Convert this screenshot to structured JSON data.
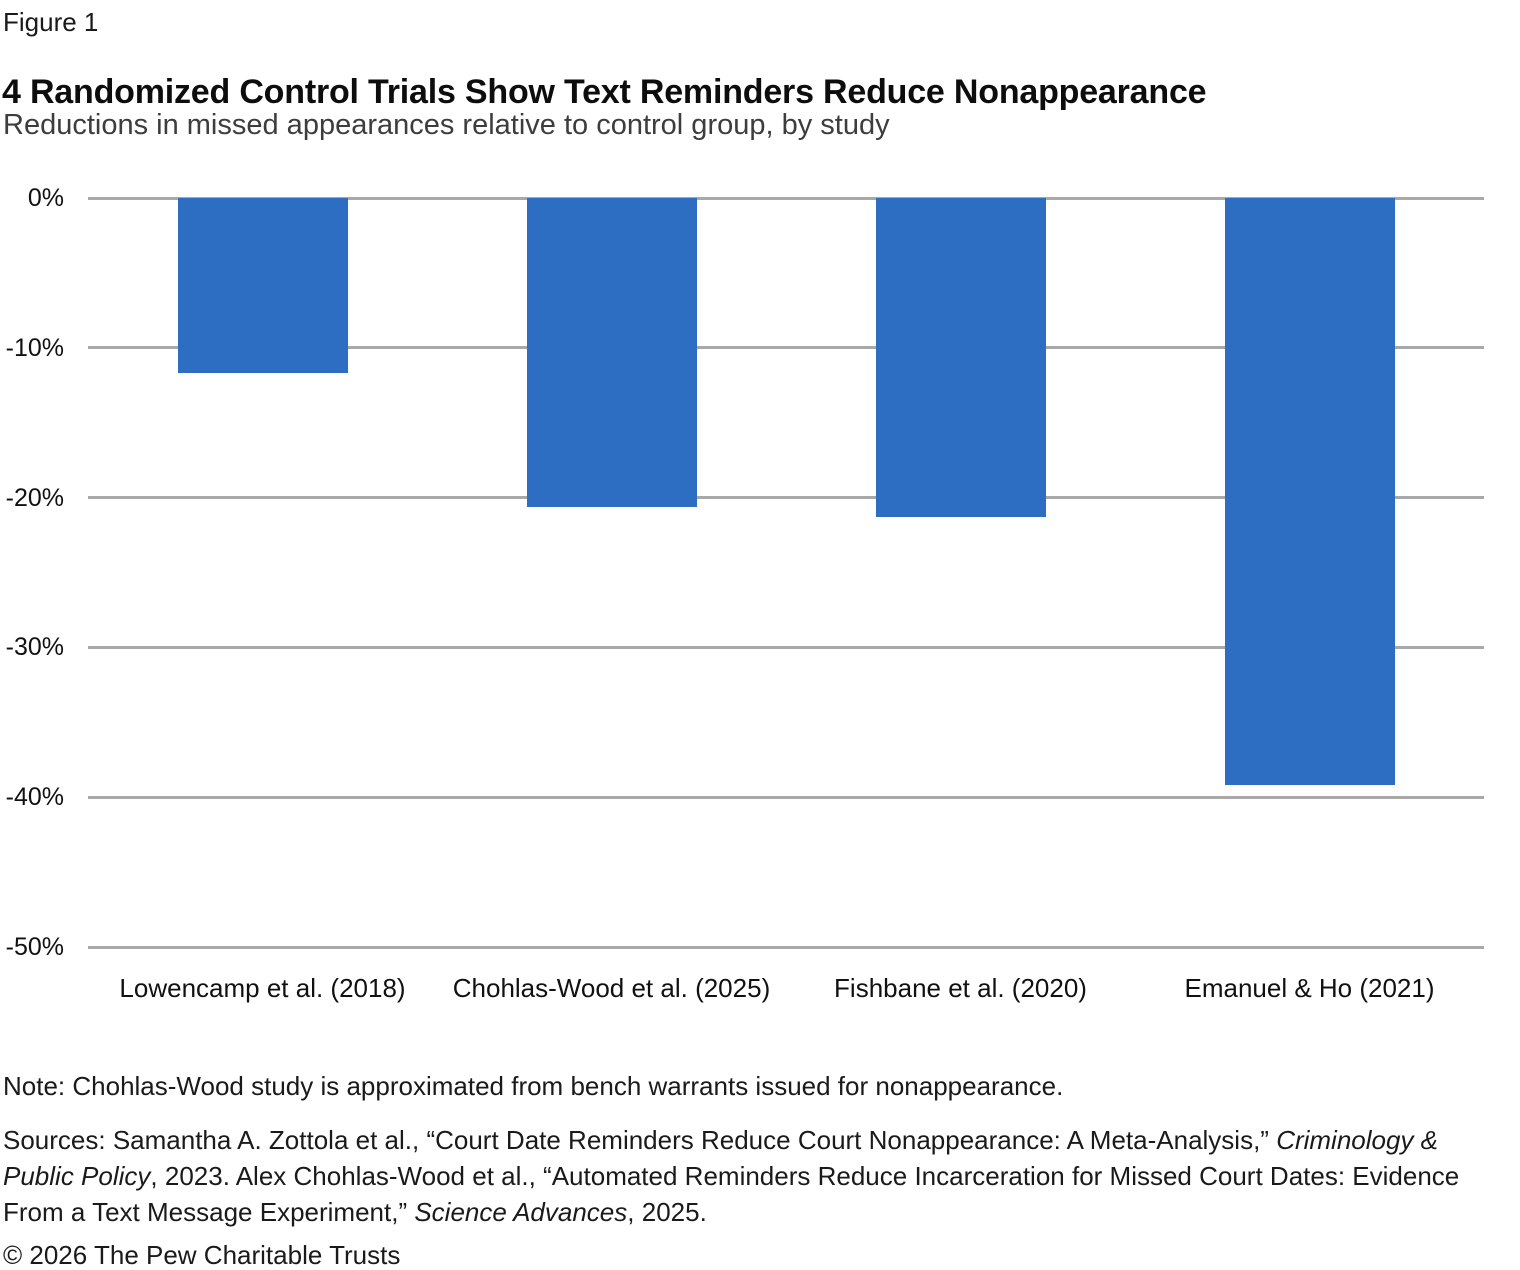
{
  "figure_label": "Figure 1",
  "title": "4 Randomized Control Trials Show Text Reminders Reduce Nonappearance",
  "subtitle": "Reductions in missed appearances relative to control group, by study",
  "chart_data": {
    "type": "bar",
    "categories": [
      "Lowencamp et al. (2018)",
      "Chohlas-Wood et al. (2025)",
      "Fishbane et al. (2020)",
      "Emanuel & Ho (2021)"
    ],
    "values": [
      -11.7,
      -20.6,
      -21.3,
      -39.2
    ],
    "title": "4 Randomized Control Trials Show Text Reminders Reduce Nonappearance",
    "xlabel": "",
    "ylabel": "",
    "ylim": [
      0,
      -50
    ],
    "yticks": [
      0,
      -10,
      -20,
      -30,
      -40,
      -50
    ],
    "ytick_labels": [
      "0%",
      "-10%",
      "-20%",
      "-30%",
      "-40%",
      "-50%"
    ],
    "grid": "horizontal",
    "legend": "none",
    "bar_color": "#2d6ec3",
    "gridline_color": "#a8a8a8"
  },
  "note": "Note: Chohlas-Wood study is approximated from bench warrants issued for nonappearance.",
  "sources": {
    "parts": [
      {
        "text": "Sources: Samantha A. Zottola et al., “Court Date Reminders Reduce Court Nonappearance: A Meta-Analysis,” ",
        "italic": false
      },
      {
        "text": "Criminology & Public Policy",
        "italic": true
      },
      {
        "text": ", 2023. Alex Chohlas-Wood et al., “Automated Reminders Reduce Incarceration for Missed Court Dates: Evidence From a Text Message Experiment,” ",
        "italic": false
      },
      {
        "text": "Science Advances",
        "italic": true
      },
      {
        "text": ", 2025.",
        "italic": false
      }
    ]
  },
  "copyright": "© 2026 The Pew Charitable Trusts"
}
